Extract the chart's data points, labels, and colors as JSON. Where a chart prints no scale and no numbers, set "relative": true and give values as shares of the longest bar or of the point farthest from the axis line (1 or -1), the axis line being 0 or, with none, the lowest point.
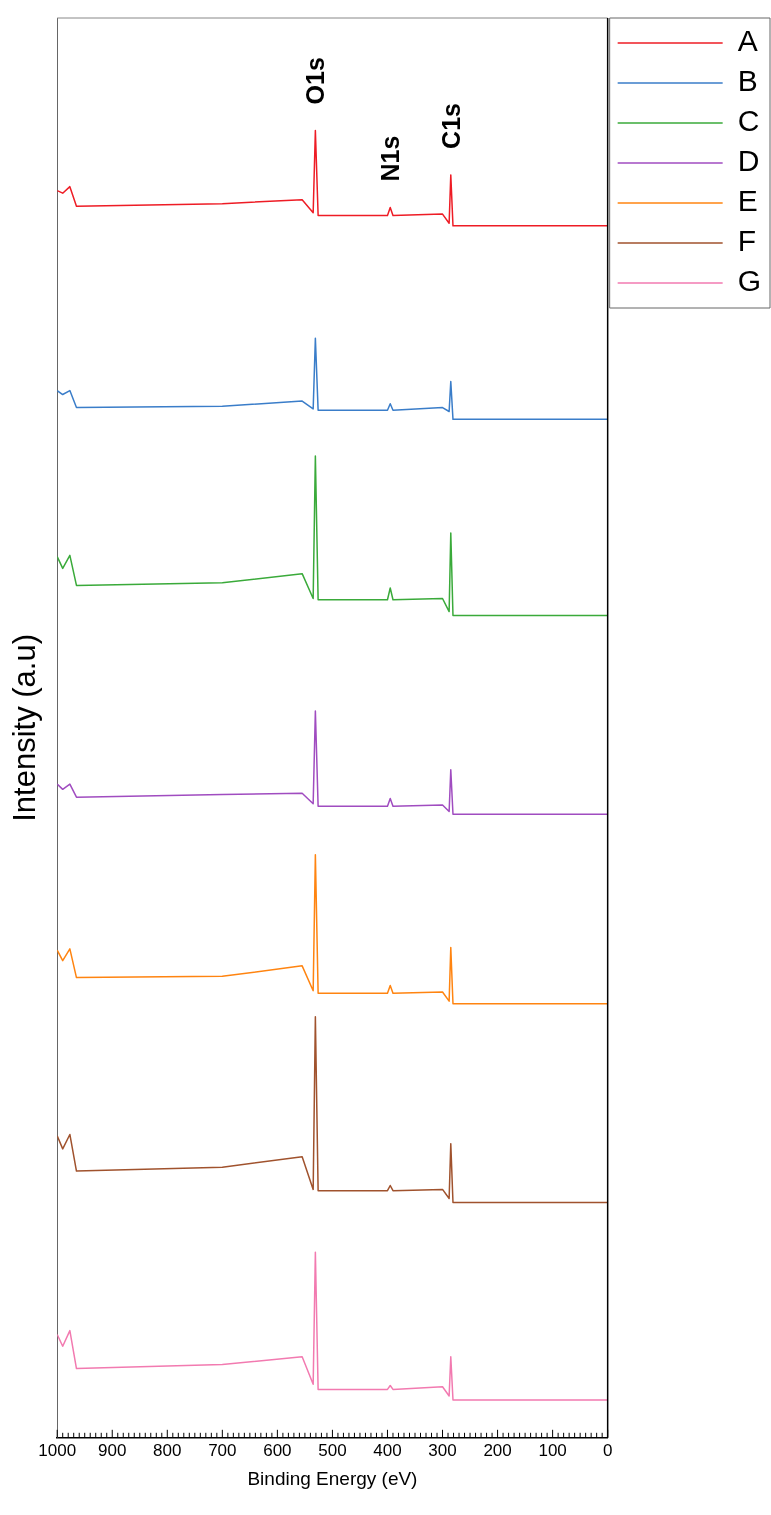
{
  "chart_data": {
    "type": "line",
    "relative": true,
    "xlabel": "Binding Energy (eV)",
    "ylabel": "Intensity (a.u)",
    "x": [
      1000,
      990,
      977,
      965,
      700,
      555,
      535,
      531,
      526,
      400,
      395,
      390,
      300,
      288,
      285,
      281,
      0
    ],
    "xlim": [
      1000,
      0
    ],
    "xticks": [
      0,
      {
        "value": 10,
        "label": null
      },
      {
        "value": 20,
        "label": null
      },
      {
        "value": 30,
        "label": null
      },
      {
        "value": 40,
        "label": null
      },
      {
        "value": 50,
        "label": null
      },
      {
        "value": 60,
        "label": null
      },
      {
        "value": 70,
        "label": null
      },
      {
        "value": 80,
        "label": null
      },
      {
        "value": 90,
        "label": null
      },
      100,
      {
        "value": 110,
        "label": null
      },
      {
        "value": 120,
        "label": null
      },
      {
        "value": 130,
        "label": null
      },
      {
        "value": 140,
        "label": null
      },
      {
        "value": 150,
        "label": null
      },
      {
        "value": 160,
        "label": null
      },
      {
        "value": 170,
        "label": null
      },
      {
        "value": 180,
        "label": null
      },
      {
        "value": 190,
        "label": null
      },
      200,
      {
        "value": 210,
        "label": null
      },
      {
        "value": 220,
        "label": null
      },
      {
        "value": 230,
        "label": null
      },
      {
        "value": 240,
        "label": null
      },
      {
        "value": 250,
        "label": null
      },
      {
        "value": 260,
        "label": null
      },
      {
        "value": 270,
        "label": null
      },
      {
        "value": 280,
        "label": null
      },
      {
        "value": 290,
        "label": null
      },
      300,
      {
        "value": 310,
        "label": null
      },
      {
        "value": 320,
        "label": null
      },
      {
        "value": 330,
        "label": null
      },
      {
        "value": 340,
        "label": null
      },
      {
        "value": 350,
        "label": null
      },
      {
        "value": 360,
        "label": null
      },
      {
        "value": 370,
        "label": null
      },
      {
        "value": 380,
        "label": null
      },
      {
        "value": 390,
        "label": null
      },
      400,
      {
        "value": 410,
        "label": null
      },
      {
        "value": 420,
        "label": null
      },
      {
        "value": 430,
        "label": null
      },
      {
        "value": 440,
        "label": null
      },
      {
        "value": 450,
        "label": null
      },
      {
        "value": 460,
        "label": null
      },
      {
        "value": 470,
        "label": null
      },
      {
        "value": 480,
        "label": null
      },
      {
        "value": 490,
        "label": null
      },
      500,
      {
        "value": 510,
        "label": null
      },
      {
        "value": 520,
        "label": null
      },
      {
        "value": 530,
        "label": null
      },
      {
        "value": 540,
        "label": null
      },
      {
        "value": 550,
        "label": null
      },
      {
        "value": 560,
        "label": null
      },
      {
        "value": 570,
        "label": null
      },
      {
        "value": 580,
        "label": null
      },
      {
        "value": 590,
        "label": null
      },
      600,
      {
        "value": 610,
        "label": null
      },
      {
        "value": 620,
        "label": null
      },
      {
        "value": 630,
        "label": null
      },
      {
        "value": 640,
        "label": null
      },
      {
        "value": 650,
        "label": null
      },
      {
        "value": 660,
        "label": null
      },
      {
        "value": 670,
        "label": null
      },
      {
        "value": 680,
        "label": null
      },
      {
        "value": 690,
        "label": null
      },
      700,
      {
        "value": 710,
        "label": null
      },
      {
        "value": 720,
        "label": null
      },
      {
        "value": 730,
        "label": null
      },
      {
        "value": 740,
        "label": null
      },
      {
        "value": 750,
        "label": null
      },
      {
        "value": 760,
        "label": null
      },
      {
        "value": 770,
        "label": null
      },
      {
        "value": 780,
        "label": null
      },
      {
        "value": 790,
        "label": null
      },
      800,
      {
        "value": 810,
        "label": null
      },
      {
        "value": 820,
        "label": null
      },
      {
        "value": 830,
        "label": null
      },
      {
        "value": 840,
        "label": null
      },
      {
        "value": 850,
        "label": null
      },
      {
        "value": 860,
        "label": null
      },
      {
        "value": 870,
        "label": null
      },
      {
        "value": 880,
        "label": null
      },
      {
        "value": 890,
        "label": null
      },
      900,
      {
        "value": 910,
        "label": null
      },
      {
        "value": 920,
        "label": null
      },
      {
        "value": 930,
        "label": null
      },
      {
        "value": 940,
        "label": null
      },
      {
        "value": 950,
        "label": null
      },
      {
        "value": 960,
        "label": null
      },
      {
        "value": 970,
        "label": null
      },
      {
        "value": 980,
        "label": null
      },
      {
        "value": 990,
        "label": null
      },
      1000
    ],
    "series": [
      {
        "name": "A",
        "color": "#ee1c25",
        "values": [
          0.954,
          0.952,
          0.957,
          0.942,
          0.944,
          0.947,
          0.937,
          1,
          0.935,
          0.935,
          0.941,
          0.935,
          0.936,
          0.929,
          0.966,
          0.927,
          0.927
        ]
      },
      {
        "name": "B",
        "color": "#3a7dc9",
        "values": [
          0.801,
          0.798,
          0.801,
          0.788,
          0.789,
          0.793,
          0.787,
          0.841,
          0.786,
          0.786,
          0.791,
          0.786,
          0.788,
          0.785,
          0.808,
          0.779,
          0.779
        ]
      },
      {
        "name": "C",
        "color": "#3aaa3a",
        "values": [
          0.674,
          0.665,
          0.675,
          0.652,
          0.654,
          0.661,
          0.642,
          0.751,
          0.641,
          0.641,
          0.65,
          0.641,
          0.642,
          0.632,
          0.692,
          0.629,
          0.629
        ]
      },
      {
        "name": "D",
        "color": "#a04cc0",
        "values": [
          0.5,
          0.496,
          0.5,
          0.49,
          0.492,
          0.493,
          0.485,
          0.556,
          0.483,
          0.483,
          0.489,
          0.483,
          0.484,
          0.479,
          0.511,
          0.477,
          0.477
        ]
      },
      {
        "name": "E",
        "color": "#ff8410",
        "values": [
          0.373,
          0.365,
          0.374,
          0.352,
          0.353,
          0.361,
          0.342,
          0.446,
          0.34,
          0.34,
          0.346,
          0.34,
          0.341,
          0.334,
          0.375,
          0.332,
          0.332
        ]
      },
      {
        "name": "F",
        "color": "#a0522d",
        "values": [
          0.231,
          0.221,
          0.232,
          0.204,
          0.207,
          0.215,
          0.19,
          0.322,
          0.189,
          0.189,
          0.193,
          0.189,
          0.19,
          0.183,
          0.225,
          0.18,
          0.18
        ]
      },
      {
        "name": "G",
        "color": "#f27ab0",
        "values": [
          0.079,
          0.07,
          0.082,
          0.053,
          0.056,
          0.062,
          0.041,
          0.142,
          0.037,
          0.037,
          0.04,
          0.037,
          0.039,
          0.032,
          0.062,
          0.029,
          0.029
        ]
      }
    ],
    "annotations": [
      {
        "text": "O1s",
        "x": 531,
        "y": 1
      },
      {
        "text": "N1s",
        "x": 395,
        "y": 0.941
      },
      {
        "text": "C1s",
        "x": 285,
        "y": 0.966
      }
    ],
    "legend": "top right",
    "grid": false,
    "marker": "none",
    "line_style": "solid"
  }
}
